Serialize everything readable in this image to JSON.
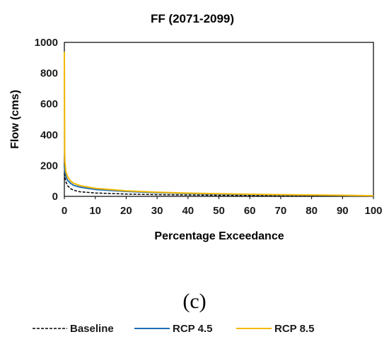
{
  "chart_data": {
    "type": "line",
    "title": "FF (2071-2099)",
    "xlabel": "Percentage Exceedance",
    "ylabel": "Flow (cms)",
    "panel_label": "(c)",
    "xlim": [
      0,
      100
    ],
    "ylim": [
      0,
      1000
    ],
    "x_ticks": [
      "0",
      "10",
      "20",
      "30",
      "40",
      "50",
      "60",
      "70",
      "80",
      "90",
      "100"
    ],
    "y_ticks": [
      "0",
      "200",
      "400",
      "600",
      "800",
      "1000"
    ],
    "grid": false,
    "legend_position": "bottom",
    "series": [
      {
        "name": "Baseline",
        "color": "#000000",
        "dash": "dashed",
        "x": [
          0,
          0.2,
          0.5,
          1,
          2,
          3,
          5,
          10,
          20,
          30,
          40,
          50,
          60,
          70,
          80,
          90,
          100
        ],
        "y": [
          150,
          120,
          95,
          70,
          50,
          40,
          30,
          22,
          15,
          11,
          9,
          7,
          6,
          5,
          4,
          3,
          2
        ]
      },
      {
        "name": "RCP 4.5",
        "color": "#1f6fb5",
        "dash": "solid",
        "x": [
          0,
          0.2,
          0.5,
          1,
          2,
          3,
          5,
          10,
          20,
          30,
          40,
          50,
          60,
          70,
          80,
          90,
          100
        ],
        "y": [
          200,
          160,
          130,
          105,
          85,
          72,
          60,
          45,
          32,
          24,
          19,
          15,
          12,
          10,
          8,
          6,
          4
        ]
      },
      {
        "name": "RCP 8.5",
        "color": "#f5b800",
        "dash": "solid",
        "x": [
          0,
          0.1,
          0.2,
          0.5,
          1,
          2,
          3,
          5,
          10,
          20,
          30,
          40,
          50,
          60,
          70,
          80,
          90,
          100
        ],
        "y": [
          940,
          300,
          220,
          160,
          130,
          100,
          85,
          70,
          52,
          36,
          27,
          21,
          17,
          14,
          11,
          9,
          7,
          4
        ]
      }
    ]
  }
}
